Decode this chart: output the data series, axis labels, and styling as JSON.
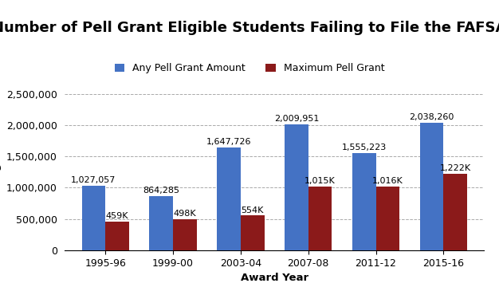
{
  "title": "Number of Pell Grant Eligible Students Failing to File the FAFSA",
  "xlabel": "Award Year",
  "ylabel": "Number of Undergraduate Students",
  "categories": [
    "1995-96",
    "1999-00",
    "2003-04",
    "2007-08",
    "2011-12",
    "2015-16"
  ],
  "blue_values": [
    1027057,
    864285,
    1647726,
    2009951,
    1555223,
    2038260
  ],
  "red_values": [
    459000,
    498000,
    554000,
    1015000,
    1016000,
    1222000
  ],
  "blue_labels": [
    "1,027,057",
    "864,285",
    "1,647,726",
    "2,009,951",
    "1,555,223",
    "2,038,260"
  ],
  "red_labels": [
    "459K",
    "498K",
    "554K",
    "1,015K",
    "1,016K",
    "1,222K"
  ],
  "blue_color": "#4472C4",
  "red_color": "#8B1A1A",
  "legend_blue": "Any Pell Grant Amount",
  "legend_red": "Maximum Pell Grant",
  "ylim": [
    0,
    2700000
  ],
  "yticks": [
    0,
    500000,
    1000000,
    1500000,
    2000000,
    2500000
  ],
  "grid_color": "#AAAAAA",
  "background_color": "#FFFFFF",
  "bar_width": 0.35,
  "title_fontsize": 13,
  "axis_label_fontsize": 9.5,
  "tick_fontsize": 9,
  "annotation_fontsize": 8,
  "legend_fontsize": 9
}
